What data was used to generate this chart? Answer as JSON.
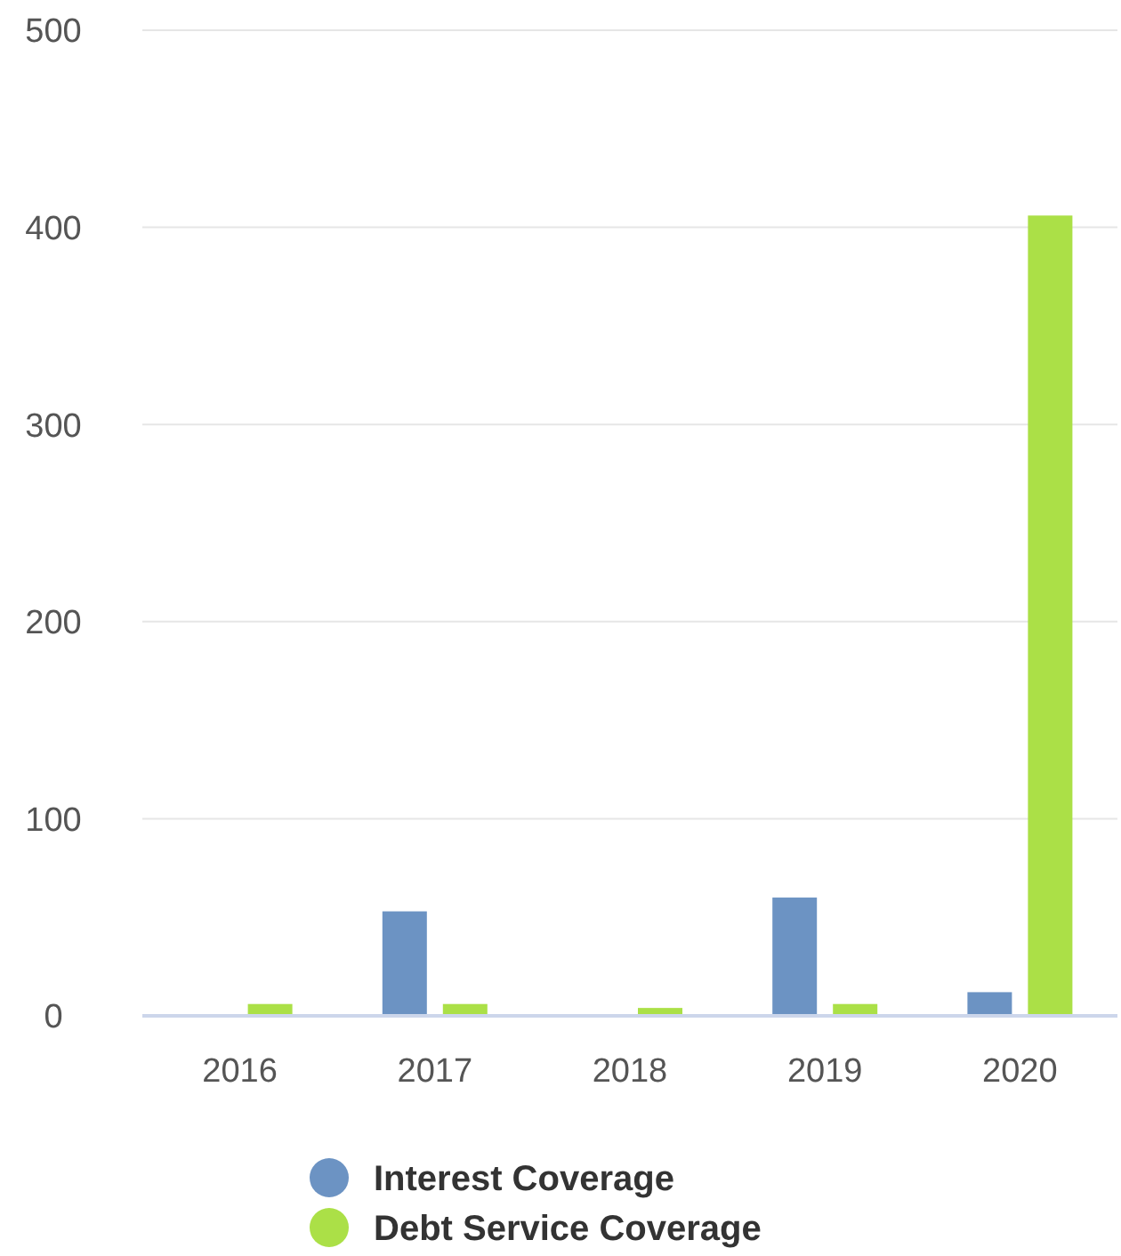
{
  "chart_data": {
    "type": "bar",
    "categories": [
      "2016",
      "2017",
      "2018",
      "2019",
      "2020"
    ],
    "series": [
      {
        "name": "Interest Coverage",
        "color": "#6c93c3",
        "values": [
          null,
          53,
          null,
          60,
          12
        ]
      },
      {
        "name": "Debt Service Coverage",
        "color": "#abe047",
        "values": [
          6,
          6,
          4,
          6,
          406
        ]
      }
    ],
    "ylim": [
      0,
      500
    ],
    "yticks": [
      0,
      100,
      200,
      300,
      400,
      500
    ],
    "grid": "y",
    "legend": "bottom"
  }
}
